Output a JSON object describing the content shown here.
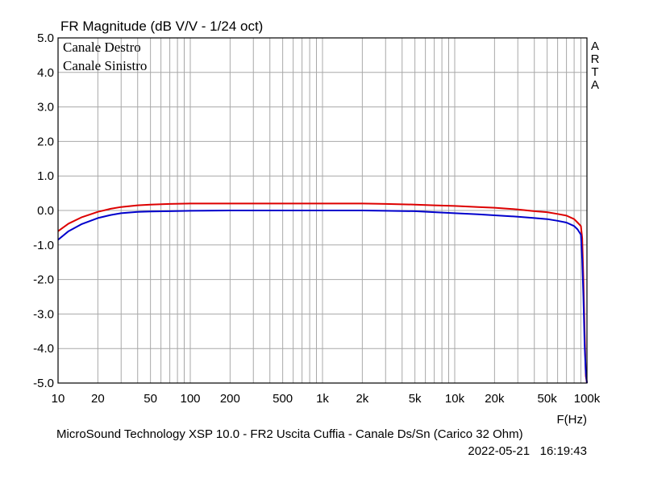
{
  "chart_data": {
    "type": "line",
    "title": "FR Magnitude (dB V/V - 1/24 oct)",
    "xlabel": "F(Hz)",
    "x_scale": "log",
    "xlim": [
      10,
      100000
    ],
    "ylim": [
      -5,
      5
    ],
    "grid": true,
    "legend_position": "top-left",
    "y_ticks": [
      "5.0",
      "4.0",
      "3.0",
      "2.0",
      "1.0",
      "0.0",
      "-1.0",
      "-2.0",
      "-3.0",
      "-4.0",
      "-5.0"
    ],
    "x_ticks": [
      {
        "value": 10,
        "label": "10"
      },
      {
        "value": 20,
        "label": "20"
      },
      {
        "value": 50,
        "label": "50"
      },
      {
        "value": 100,
        "label": "100"
      },
      {
        "value": 200,
        "label": "200"
      },
      {
        "value": 500,
        "label": "500"
      },
      {
        "value": 1000,
        "label": "1k"
      },
      {
        "value": 2000,
        "label": "2k"
      },
      {
        "value": 5000,
        "label": "5k"
      },
      {
        "value": 10000,
        "label": "10k"
      },
      {
        "value": 20000,
        "label": "20k"
      },
      {
        "value": 50000,
        "label": "50k"
      },
      {
        "value": 100000,
        "label": "100k"
      }
    ],
    "series": [
      {
        "name": "Canale Destro",
        "color": "#dd0000",
        "x": [
          10,
          12,
          15,
          20,
          25,
          30,
          40,
          50,
          70,
          100,
          200,
          500,
          1000,
          2000,
          3000,
          5000,
          7000,
          10000,
          15000,
          20000,
          30000,
          40000,
          50000,
          60000,
          70000,
          80000,
          85000,
          90000,
          92000,
          94000,
          96000,
          98000,
          100000
        ],
        "y": [
          -0.6,
          -0.38,
          -0.2,
          -0.04,
          0.05,
          0.1,
          0.15,
          0.17,
          0.19,
          0.2,
          0.2,
          0.2,
          0.2,
          0.2,
          0.19,
          0.17,
          0.15,
          0.13,
          0.1,
          0.08,
          0.03,
          -0.02,
          -0.05,
          -0.1,
          -0.15,
          -0.25,
          -0.35,
          -0.45,
          -0.8,
          -2.0,
          -3.5,
          -4.8,
          -5.0
        ]
      },
      {
        "name": "Canale Sinistro",
        "color": "#0000cc",
        "x": [
          10,
          12,
          15,
          20,
          25,
          30,
          40,
          50,
          70,
          100,
          200,
          500,
          1000,
          2000,
          3000,
          5000,
          7000,
          10000,
          15000,
          20000,
          30000,
          40000,
          50000,
          60000,
          70000,
          80000,
          85000,
          90000,
          92000,
          94000,
          96000,
          98000,
          100000
        ],
        "y": [
          -0.85,
          -0.6,
          -0.4,
          -0.22,
          -0.13,
          -0.08,
          -0.04,
          -0.03,
          -0.02,
          -0.01,
          0.0,
          0.0,
          0.0,
          0.0,
          -0.01,
          -0.02,
          -0.05,
          -0.08,
          -0.11,
          -0.14,
          -0.18,
          -0.22,
          -0.25,
          -0.3,
          -0.35,
          -0.45,
          -0.55,
          -0.7,
          -1.4,
          -2.5,
          -3.9,
          -4.7,
          -5.0
        ]
      }
    ],
    "right_label": [
      "A",
      "R",
      "T",
      "A"
    ],
    "footer": "MicroSound Technology XSP 10.0 - FR2 Uscita Cuffia - Canale Ds/Sn (Carico 32 Ohm)",
    "timestamp": "2022-05-21   16:19:43"
  }
}
